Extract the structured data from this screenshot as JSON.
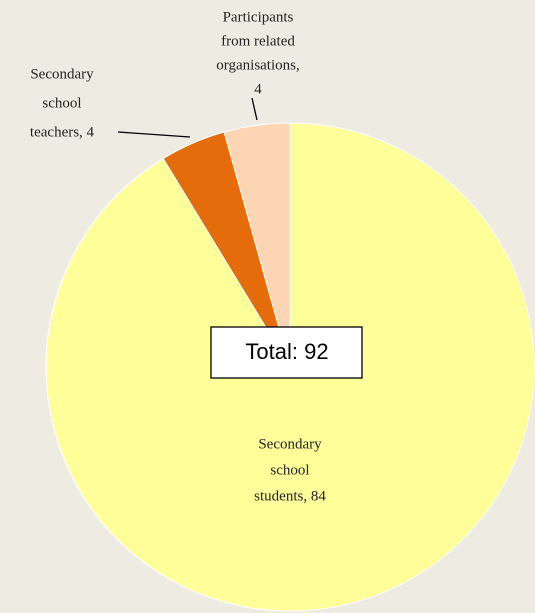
{
  "chart_data": {
    "type": "pie",
    "values": [
      84,
      4,
      4
    ],
    "value_labels": [
      [
        "Secondary",
        "school",
        "students, 84"
      ],
      [
        "Secondary",
        "school",
        "teachers, 4"
      ],
      [
        "Participants",
        "from related",
        "organisations,",
        "4"
      ]
    ],
    "colors": [
      "#ffff99",
      "#e46c0a",
      "#fcd5b5"
    ],
    "annotation": "Total: 92"
  }
}
